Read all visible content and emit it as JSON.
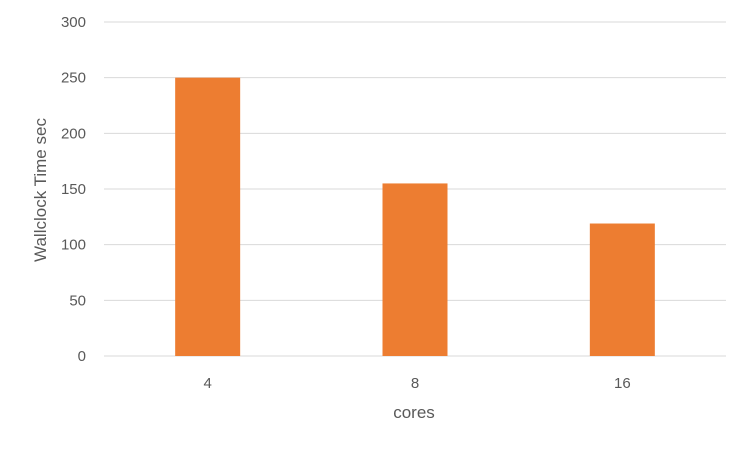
{
  "chart_data": {
    "type": "bar",
    "title": "",
    "xlabel": "cores",
    "ylabel": "Wallclock Time sec",
    "categories": [
      "4",
      "8",
      "16"
    ],
    "values": [
      250,
      155,
      119
    ],
    "ylim": [
      0,
      300
    ],
    "yticks": [
      0,
      50,
      100,
      150,
      200,
      250,
      300
    ],
    "grid": true,
    "legend": "none",
    "colors": {
      "bar": "#ED7D31",
      "grid": "#D9D9D9",
      "text": "#595959"
    }
  }
}
